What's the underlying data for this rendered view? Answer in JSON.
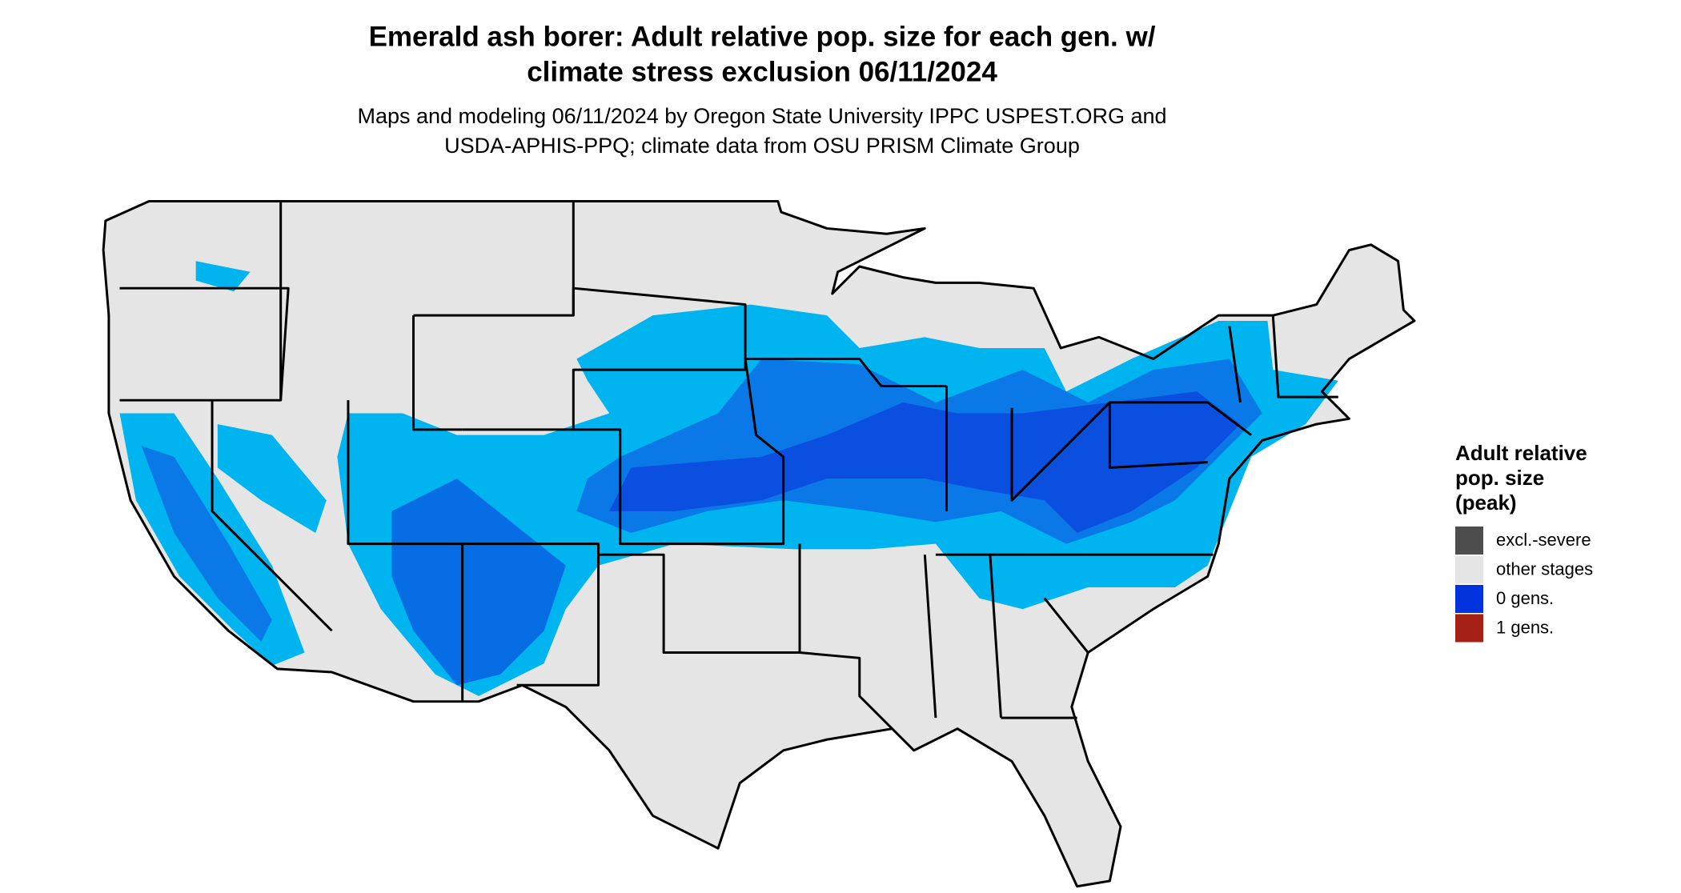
{
  "title": [
    "Emerald ash borer: Adult relative pop. size for each gen. w/",
    "climate stress exclusion 06/11/2024"
  ],
  "subtitle": [
    "Maps and modeling 06/11/2024 by Oregon State University IPPC USPEST.ORG and",
    "USDA-APHIS-PPQ; climate data from OSU PRISM Climate Group"
  ],
  "legend": {
    "title": [
      "Adult relative",
      "pop. size",
      "(peak)"
    ],
    "items": [
      {
        "label": "excl.-severe",
        "color": "#4d4d4d"
      },
      {
        "label": "other stages",
        "color": "#e5e5e5"
      },
      {
        "label": "0 gens.",
        "color": "#0033dd"
      },
      {
        "label": "1 gens.",
        "color": "#a52015"
      }
    ]
  }
}
